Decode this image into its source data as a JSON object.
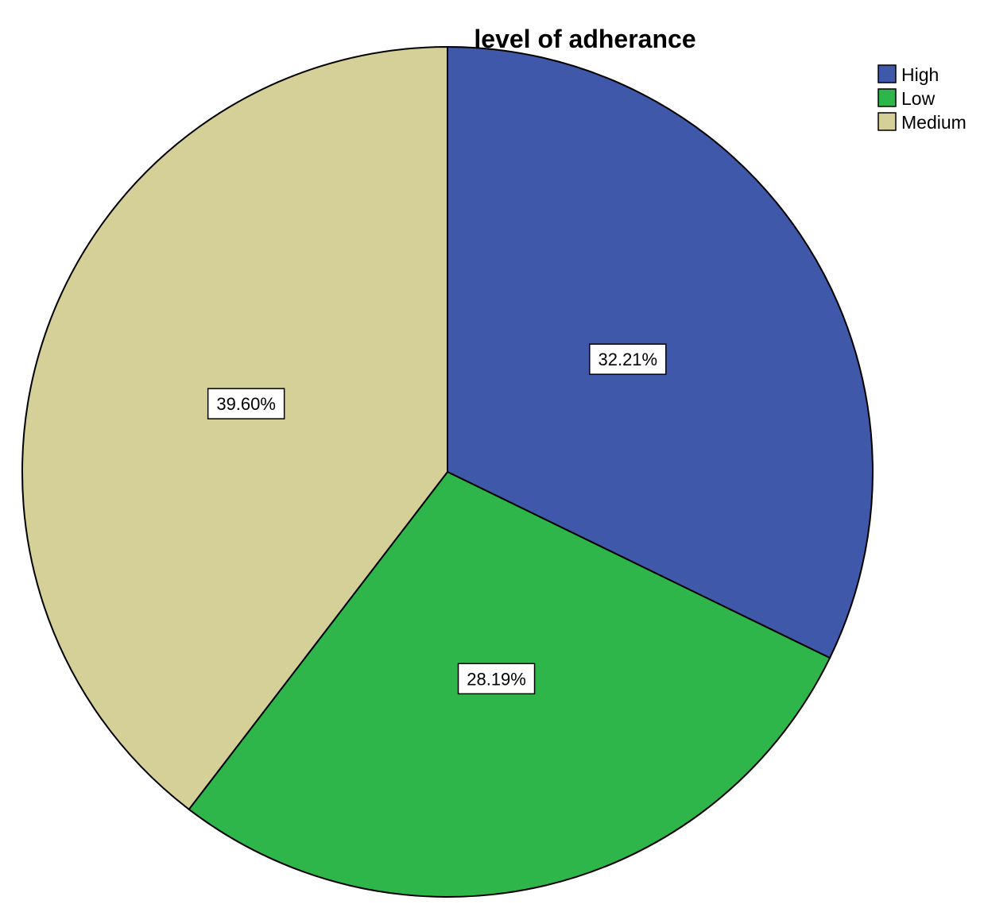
{
  "chart_data": {
    "type": "pie",
    "title": "level of adherance",
    "categories": [
      "High",
      "Low",
      "Medium"
    ],
    "values": [
      32.21,
      28.19,
      39.6
    ],
    "data_labels": [
      "32.21%",
      "28.19%",
      "39.60%"
    ],
    "colors": [
      "#3f58a9",
      "#2fb64a",
      "#d5cf98"
    ],
    "start_angle": "12 o'clock",
    "direction": "clockwise",
    "legend": {
      "position": "top-right",
      "items": [
        "High",
        "Low",
        "Medium"
      ]
    }
  }
}
